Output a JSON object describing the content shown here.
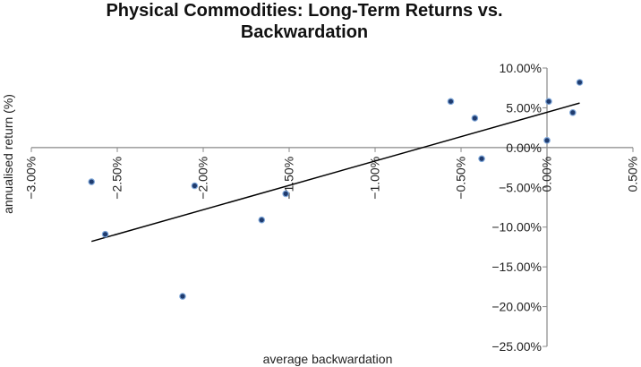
{
  "chart_data": {
    "type": "scatter",
    "title": "Physical Commodities: Long-Term Returns vs. Backwardation",
    "title_lines": [
      "Physical Commodities: Long-Term Returns vs.",
      "Backwardation"
    ],
    "xlabel": "average backwardation",
    "ylabel": "annualised return (%)",
    "xlim": [
      -3.0,
      0.5
    ],
    "ylim": [
      -25.0,
      10.0
    ],
    "x_ticks": [
      -3.0,
      -2.5,
      -2.0,
      -1.5,
      -1.0,
      -0.5,
      0.0,
      0.5
    ],
    "x_tick_labels": [
      "−3.00%",
      "−2.50%",
      "−2.00%",
      "−1.50%",
      "−1.00%",
      "−0.50%",
      "0.00%",
      "0.50%"
    ],
    "y_ticks": [
      10,
      5,
      0,
      -5,
      -10,
      -15,
      -20,
      -25
    ],
    "y_tick_labels": [
      "10.00%",
      "5.00%",
      "0.00%",
      "−5.00%",
      "−10.00%",
      "−15.00%",
      "−20.00%",
      "−25.00%"
    ],
    "grid": false,
    "legend": "none",
    "series": [
      {
        "points": [
          {
            "x": -2.65,
            "y": -4.3
          },
          {
            "x": -2.57,
            "y": -10.9
          },
          {
            "x": -2.12,
            "y": -18.7
          },
          {
            "x": -2.05,
            "y": -4.8
          },
          {
            "x": -1.66,
            "y": -9.1
          },
          {
            "x": -1.52,
            "y": -5.8
          },
          {
            "x": -0.56,
            "y": 5.8
          },
          {
            "x": -0.42,
            "y": 3.7
          },
          {
            "x": -0.38,
            "y": -1.4
          },
          {
            "x": 0.0,
            "y": 0.9
          },
          {
            "x": 0.01,
            "y": 5.8
          },
          {
            "x": 0.15,
            "y": 4.4
          },
          {
            "x": 0.19,
            "y": 8.2
          }
        ]
      }
    ],
    "trendline": {
      "x": [
        -2.65,
        0.19
      ],
      "y": [
        -11.8,
        5.6
      ]
    },
    "colors": {
      "point_fill": "#1f3b6e",
      "point_stroke": "#7fa7d9",
      "trendline": "#000000",
      "axis": "#888888"
    }
  }
}
